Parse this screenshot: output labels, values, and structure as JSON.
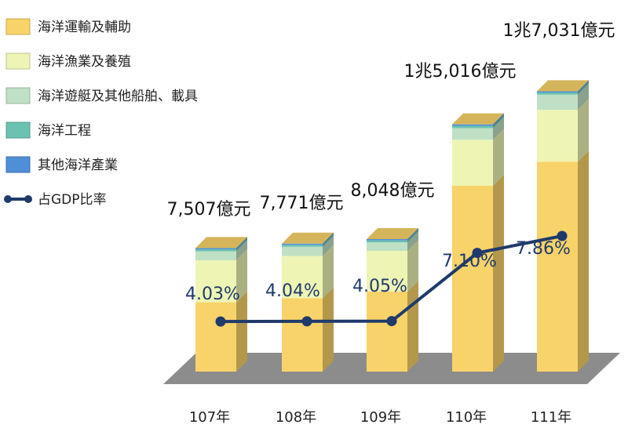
{
  "chart_data": {
    "type": "bar",
    "stacked": true,
    "three_d": true,
    "categories": [
      "107年",
      "108年",
      "109年",
      "110年",
      "111年"
    ],
    "series": [
      {
        "name": "海洋運輸及輔助",
        "color": "#F8D36A",
        "values": [
          4210,
          4460,
          4860,
          11290,
          12750
        ]
      },
      {
        "name": "海洋漁業及養殖",
        "color": "#EEF5B4",
        "values": [
          2550,
          2560,
          2470,
          2790,
          3150
        ]
      },
      {
        "name": "海洋遊艇及其他船舶、載具",
        "color": "#BFE0C4",
        "values": [
          550,
          560,
          520,
          710,
          920
        ]
      },
      {
        "name": "海洋工程",
        "color": "#6CC2B1",
        "values": [
          120,
          120,
          120,
          140,
          130
        ]
      },
      {
        "name": "其他海洋產業",
        "color": "#4F8FD8",
        "values": [
          77,
          71,
          78,
          86,
          81
        ]
      }
    ],
    "totals": [
      "7,507億元",
      "7,771億元",
      "8,048億元",
      "1兆5,016億元",
      "1兆7,031億元"
    ],
    "total_values": [
      7507,
      7771,
      8048,
      15016,
      17031
    ],
    "line": {
      "name": "占GDP比率",
      "color": "#1F3A6B",
      "values": [
        4.03,
        4.04,
        4.05,
        7.1,
        7.86
      ],
      "labels": [
        "4.03%",
        "4.04%",
        "4.05%",
        "7.10%",
        "7.86%"
      ]
    },
    "ylim": [
      0,
      18000
    ],
    "legend_position": "top-left",
    "grid": false,
    "title": "",
    "xlabel": "",
    "ylabel": ""
  }
}
